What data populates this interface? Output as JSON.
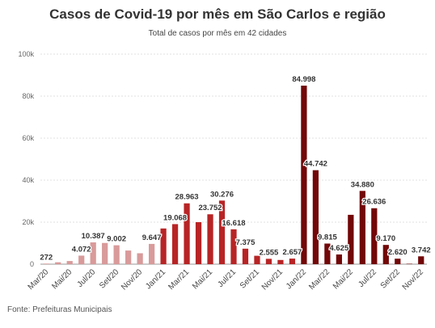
{
  "chart_data": {
    "type": "bar",
    "title": "Casos de Covid-19 por mês em São Carlos e região",
    "subtitle": "Total de casos por mês em 42 cidades",
    "xlabel": "",
    "ylabel": "",
    "ylim": [
      0,
      100000
    ],
    "y_ticks": [
      0,
      20000,
      40000,
      60000,
      80000,
      100000
    ],
    "y_tick_labels": [
      "0",
      "20k",
      "40k",
      "60k",
      "80k",
      "100k"
    ],
    "grid": true,
    "legend": "none",
    "x_tick_labels": [
      "Mar/20",
      "Mai/20",
      "Jul/20",
      "Set/20",
      "Nov/20",
      "Jan/21",
      "Mar/21",
      "Mai/21",
      "Jul/21",
      "Set/21",
      "Nov/21",
      "Jan/22",
      "Mar/22",
      "Mai/22",
      "Jul/22",
      "Set/22",
      "Nov/22"
    ],
    "categories": [
      "Mar/20",
      "Abr/20",
      "Mai/20",
      "Jun/20",
      "Jul/20",
      "Ago/20",
      "Set/20",
      "Out/20",
      "Nov/20",
      "Dez/20",
      "Jan/21",
      "Fev/21",
      "Mar/21",
      "Abr/21",
      "Mai/21",
      "Jun/21",
      "Jul/21",
      "Ago/21",
      "Set/21",
      "Out/21",
      "Nov/21",
      "Dez/21",
      "Jan/22",
      "Fev/22",
      "Mar/22",
      "Abr/22",
      "Mai/22",
      "Jun/22",
      "Jul/22",
      "Ago/22",
      "Set/22",
      "Out/22",
      "Nov/22"
    ],
    "values": [
      272,
      900,
      1500,
      4072,
      10387,
      10100,
      9002,
      6500,
      5200,
      9647,
      17000,
      19068,
      28963,
      20000,
      23752,
      30276,
      16618,
      7375,
      4000,
      2555,
      2000,
      2657,
      84998,
      44742,
      9815,
      4625,
      23500,
      34880,
      26636,
      9170,
      2620,
      200,
      3742
    ],
    "labels": [
      "272",
      "",
      "",
      "4.072",
      "10.387",
      "",
      "9.002",
      "",
      "",
      "9.647",
      "",
      "19.068",
      "28.963",
      "",
      "23.752",
      "30.276",
      "16.618",
      "7.375",
      "",
      "2.555",
      "",
      "2.657",
      "84.998",
      "44.742",
      "9.815",
      "4.625",
      "",
      "34.880",
      "26.636",
      "9.170",
      "2.620",
      "",
      "3.742"
    ],
    "colors": {
      "2020": "#d99a9a",
      "2021": "#b82425",
      "2022": "#720708",
      "grid": "#e2e2e2",
      "axis": "#999999"
    }
  },
  "source": "Fonte: Prefeituras Municipais"
}
